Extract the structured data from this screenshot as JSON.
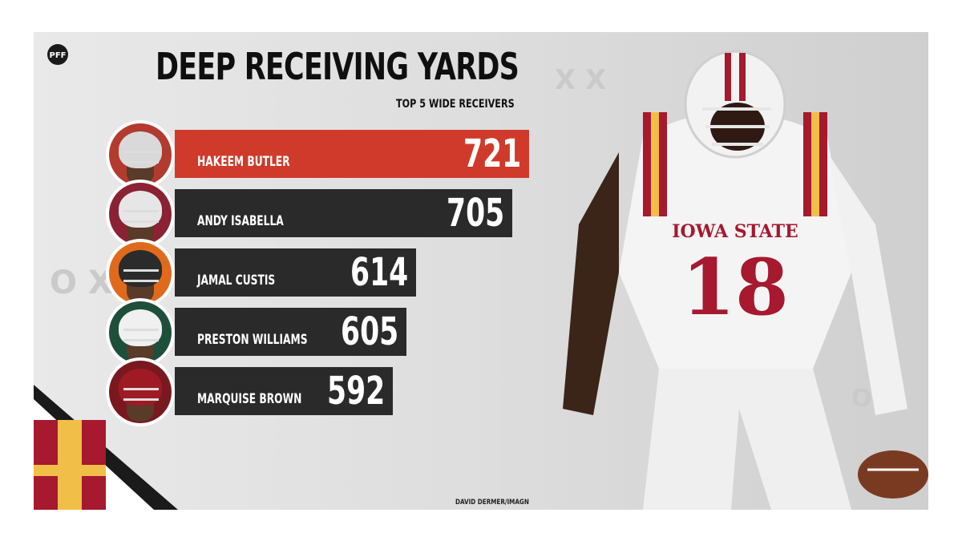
{
  "brand": {
    "logo_text": "PFF"
  },
  "chart_data": {
    "type": "bar",
    "title": "DEEP RECEIVING YARDS",
    "subtitle": "TOP 5 WIDE RECEIVERS",
    "categories": [
      "HAKEEM BUTLER",
      "ANDY ISABELLA",
      "JAMAL CUSTIS",
      "PRESTON WILLIAMS",
      "MARQUISE BROWN"
    ],
    "values": [
      721,
      705,
      614,
      605,
      592
    ],
    "highlight_index": 0,
    "colors": {
      "highlight": "#d03a2b",
      "bar": "#2a2a2a",
      "text": "#ffffff",
      "title": "#0f0f0f"
    },
    "orientation": "horizontal",
    "grid": false
  },
  "featured_player": {
    "team_text": "IOWA STATE",
    "jersey_number": "18",
    "colors": {
      "crimson": "#a6192e",
      "gold": "#f1be48",
      "white": "#f4f4f4"
    }
  },
  "photo_credit": "DAVID DERMER/IMAGN",
  "avatar_palettes": [
    {
      "helmet": "#d9d9d9",
      "bg": "#b23a2e"
    },
    {
      "helmet": "#e6e6e6",
      "bg": "#8a2233"
    },
    {
      "helmet": "#2b2b2b",
      "bg": "#e06a1c"
    },
    {
      "helmet": "#f0f0f0",
      "bg": "#1e4f3a"
    },
    {
      "helmet": "#9e1b24",
      "bg": "#7a1820"
    }
  ]
}
